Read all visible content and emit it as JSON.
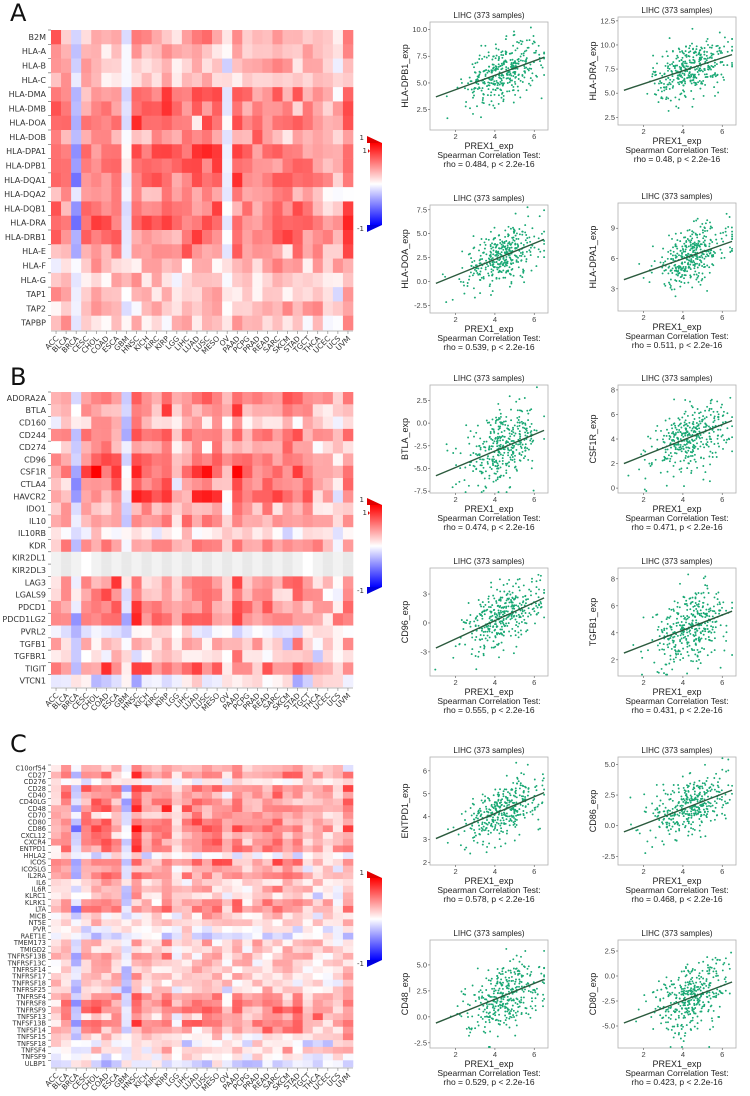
{
  "figure": {
    "panels": [
      "A",
      "B",
      "C"
    ]
  },
  "chart_data": [
    {
      "type": "heatmap",
      "panel": "A",
      "title": "",
      "xlabel": "",
      "ylabel": "",
      "color_scale": {
        "min": -1,
        "max": 1,
        "low_color": "#0000ff",
        "mid_color": "#ffffff",
        "high_color": "#ff0000",
        "labels": [
          "1",
          "1",
          "-1"
        ]
      },
      "columns": [
        "ACC",
        "BLCA",
        "BRCA",
        "CESC",
        "CHOL",
        "COAD",
        "ESCA",
        "GBM",
        "HNSC",
        "KICH",
        "KIRC",
        "KIRP",
        "LGG",
        "LIHC",
        "LUAD",
        "LUSC",
        "MESO",
        "OV",
        "PAAD",
        "PCPG",
        "PRAD",
        "READ",
        "SARC",
        "SKCM",
        "STAD",
        "TGCT",
        "THCA",
        "UCEC",
        "UCS",
        "UVM"
      ],
      "rows": [
        "B2M",
        "HLA-A",
        "HLA-B",
        "HLA-C",
        "HLA-DMA",
        "HLA-DMB",
        "HLA-DOA",
        "HLA-DOB",
        "HLA-DPA1",
        "HLA-DPB1",
        "HLA-DQA1",
        "HLA-DQA2",
        "HLA-DQB1",
        "HLA-DRA",
        "HLA-DRB1",
        "HLA-E",
        "HLA-F",
        "HLA-G",
        "TAP1",
        "TAP2",
        "TAPBP"
      ],
      "row_level": [
        0.35,
        0.3,
        0.3,
        0.28,
        0.55,
        0.55,
        0.6,
        0.4,
        0.62,
        0.62,
        0.58,
        0.45,
        0.55,
        0.62,
        0.55,
        0.42,
        0.28,
        0.22,
        0.3,
        0.3,
        0.25
      ],
      "col_level": [
        0.9,
        0.8,
        -0.6,
        0.8,
        0.9,
        0.9,
        0.9,
        -0.1,
        1.0,
        0.9,
        1.0,
        1.1,
        0.8,
        0.9,
        1.0,
        1.1,
        1.1,
        -0.1,
        1.1,
        0.8,
        0.9,
        0.9,
        1.0,
        0.8,
        0.9,
        0.7,
        0.7,
        0.5,
        0.4,
        1.2
      ]
    },
    {
      "type": "heatmap",
      "panel": "B",
      "title": "",
      "xlabel": "",
      "ylabel": "",
      "color_scale": {
        "min": -1,
        "max": 1,
        "low_color": "#0000ff",
        "mid_color": "#ffffff",
        "high_color": "#ff0000",
        "labels": [
          "1",
          "1",
          "-1"
        ]
      },
      "columns": [
        "ACC",
        "BLCA",
        "BRCA",
        "CESC",
        "CHOL",
        "COAD",
        "ESCA",
        "GBM",
        "HNSC",
        "KICH",
        "KIRC",
        "KIRP",
        "LGG",
        "LIHC",
        "LUAD",
        "LUSC",
        "MESO",
        "OV",
        "PAAD",
        "PCPG",
        "PRAD",
        "READ",
        "SARC",
        "SKCM",
        "STAD",
        "TGCT",
        "THCA",
        "UCEC",
        "UCS",
        "UVM"
      ],
      "rows": [
        "ADORA2A",
        "BTLA",
        "CD160",
        "CD244",
        "CD274",
        "CD96",
        "CSF1R",
        "CTLA4",
        "HAVCR2",
        "IDO1",
        "IL10",
        "IL10RB",
        "KDR",
        "KIR2DL1",
        "KIR2DL3",
        "LAG3",
        "LGALS9",
        "PDCD1",
        "PDCD1LG2",
        "PVRL2",
        "TGFB1",
        "TGFBR1",
        "TIGIT",
        "VTCN1"
      ],
      "row_level": [
        0.55,
        0.5,
        0.2,
        0.5,
        0.35,
        0.55,
        0.65,
        0.5,
        0.58,
        0.35,
        0.45,
        0.05,
        0.45,
        0.0,
        0.0,
        0.4,
        0.45,
        0.5,
        0.55,
        0.0,
        0.3,
        0.15,
        0.6,
        -0.1
      ],
      "col_level": [
        0.7,
        0.8,
        -0.4,
        0.9,
        1.0,
        1.0,
        1.0,
        -0.2,
        1.2,
        0.9,
        0.8,
        1.1,
        0.4,
        0.8,
        1.0,
        1.1,
        1.0,
        0.5,
        1.2,
        0.8,
        0.7,
        0.8,
        0.9,
        0.8,
        0.9,
        0.8,
        0.6,
        0.5,
        0.3,
        0.9
      ]
    },
    {
      "type": "heatmap",
      "panel": "C",
      "title": "",
      "xlabel": "",
      "ylabel": "",
      "color_scale": {
        "min": -1,
        "max": 1,
        "low_color": "#0000ff",
        "mid_color": "#ffffff",
        "high_color": "#ff0000",
        "labels": [
          "1",
          "-1"
        ]
      },
      "columns": [
        "ACC",
        "BLCA",
        "BRCA",
        "CESC",
        "CHOL",
        "COAD",
        "ESCA",
        "GBM",
        "HNSC",
        "KICH",
        "KIRC",
        "KIRP",
        "LGG",
        "LIHC",
        "LUAD",
        "LUSC",
        "MESO",
        "OV",
        "PAAD",
        "PCPG",
        "PRAD",
        "READ",
        "SARC",
        "SKCM",
        "STAD",
        "TGCT",
        "THCA",
        "UCEC",
        "UCS",
        "UVM"
      ],
      "rows": [
        "C10orf54",
        "CD27",
        "CD276",
        "CD28",
        "CD40",
        "CD40LG",
        "CD48",
        "CD70",
        "CD80",
        "CD86",
        "CXCL12",
        "CXCR4",
        "ENTPD1",
        "HHLA2",
        "ICOS",
        "ICOSLG",
        "IL2RA",
        "IL6",
        "IL6R",
        "KLRC1",
        "KLRK1",
        "LTA",
        "MICB",
        "NT5E",
        "PVR",
        "RAET1E",
        "TMEM173",
        "TMIGD2",
        "TNFRSF13B",
        "TNFRSF13C",
        "TNFRSF14",
        "TNFRSF17",
        "TNFRSF18",
        "TNFRSF25",
        "TNFRSF4",
        "TNFRSF8",
        "TNFRSF9",
        "TNFSF13",
        "TNFSF13B",
        "TNFSF14",
        "TNFSF15",
        "TNFSF18",
        "TNFSF4",
        "TNFSF9",
        "ULBP1"
      ],
      "row_level": [
        0.3,
        0.5,
        0.05,
        0.55,
        0.45,
        0.5,
        0.55,
        0.3,
        0.5,
        0.6,
        0.45,
        0.55,
        0.5,
        0.05,
        0.5,
        0.35,
        0.5,
        0.25,
        0.3,
        0.15,
        0.45,
        0.45,
        0.2,
        0.2,
        0.0,
        -0.1,
        0.3,
        0.2,
        0.35,
        0.25,
        0.2,
        0.3,
        0.25,
        0.15,
        0.45,
        0.55,
        0.55,
        0.35,
        0.6,
        0.45,
        0.2,
        0.1,
        0.2,
        0.0,
        -0.15
      ],
      "col_level": [
        0.5,
        0.9,
        -0.5,
        0.9,
        1.0,
        1.0,
        0.9,
        -0.3,
        1.2,
        0.7,
        0.8,
        1.1,
        0.4,
        0.7,
        0.9,
        1.0,
        1.0,
        0.5,
        1.0,
        0.6,
        0.7,
        0.8,
        0.9,
        0.9,
        0.9,
        0.5,
        0.7,
        0.5,
        0.4,
        0.9
      ]
    },
    {
      "type": "scatter",
      "panel": "A",
      "title": "LIHC (373 samples)",
      "xlabel": "PREX1_exp",
      "ylabel": "HLA-DPB1_exp",
      "caption": [
        "Spearman Correlation Test:",
        "rho = 0.484, p < 2.2e-16"
      ],
      "xticks": [
        2,
        4,
        6
      ],
      "yticks": [
        2.5,
        5.0,
        7.5,
        10.0
      ],
      "ytick_labels": [
        "2.5",
        "5.0",
        "7.5",
        "10.0"
      ],
      "xlim": [
        0.7,
        6.7
      ],
      "ylim": [
        0.6,
        10.7
      ],
      "fit": [
        [
          1.0,
          3.7
        ],
        [
          6.5,
          7.4
        ]
      ],
      "rho": 0.484,
      "n": 373,
      "center_x": 4.4,
      "center_y": 6.0,
      "spread_y": 1.3
    },
    {
      "type": "scatter",
      "panel": "A",
      "title": "LIHC (373 samples)",
      "xlabel": "PREX1_exp",
      "ylabel": "HLA-DRA_exp",
      "caption": [
        "Spearman Correlation Test:",
        "rho = 0.48, p < 2.2e-16"
      ],
      "xticks": [
        2,
        4,
        6
      ],
      "yticks": [
        2.5,
        5.0,
        7.5,
        10.0,
        12.5
      ],
      "ytick_labels": [
        "2.5",
        "5.0",
        "7.5",
        "10.0",
        "12.5"
      ],
      "xlim": [
        0.7,
        6.7
      ],
      "ylim": [
        1.7,
        12.9
      ],
      "fit": [
        [
          1.0,
          5.3
        ],
        [
          6.5,
          9.0
        ]
      ],
      "rho": 0.48,
      "n": 373,
      "center_x": 4.4,
      "center_y": 7.6,
      "spread_y": 1.4
    },
    {
      "type": "scatter",
      "panel": "A",
      "title": "LIHC (373 samples)",
      "xlabel": "PREX1_exp",
      "ylabel": "HLA-DOA_exp",
      "caption": [
        "Spearman Correlation Test:",
        "rho = 0.539, p < 2.2e-16"
      ],
      "xticks": [
        2,
        4,
        6
      ],
      "yticks": [
        -2.5,
        0.0,
        2.5,
        5.0,
        7.5
      ],
      "ytick_labels": [
        "-2.5",
        "0.0",
        "2.5",
        "5.0",
        "7.5"
      ],
      "xlim": [
        0.7,
        6.7
      ],
      "ylim": [
        -3.3,
        8.0
      ],
      "fit": [
        [
          1.0,
          -0.2
        ],
        [
          6.5,
          4.4
        ]
      ],
      "rho": 0.539,
      "n": 373,
      "center_x": 4.4,
      "center_y": 2.6,
      "spread_y": 1.4
    },
    {
      "type": "scatter",
      "panel": "A",
      "title": "LIHC (373 samples)",
      "xlabel": "PREX1_exp",
      "ylabel": "HLA-DPA1_exp",
      "caption": [
        "Spearman Correlation Test:",
        "rho = 0.511, p < 2.2e-16"
      ],
      "xticks": [
        2,
        4,
        6
      ],
      "yticks": [
        3,
        6,
        9
      ],
      "ytick_labels": [
        "3",
        "6",
        "9"
      ],
      "xlim": [
        0.7,
        6.7
      ],
      "ylim": [
        0.8,
        11.5
      ],
      "fit": [
        [
          1.0,
          3.9
        ],
        [
          6.5,
          7.7
        ]
      ],
      "rho": 0.511,
      "n": 373,
      "center_x": 4.4,
      "center_y": 6.3,
      "spread_y": 1.3
    },
    {
      "type": "scatter",
      "panel": "B",
      "title": "LIHC (373 samples)",
      "xlabel": "PREX1_exp",
      "ylabel": "BTLA_exp",
      "caption": [
        "Spearman Correlation Test:",
        "rho = 0.474, p < 2.2e-16"
      ],
      "xticks": [
        2,
        4,
        6
      ],
      "yticks": [
        -7.5,
        -5.0,
        -2.5,
        0.0,
        2.5
      ],
      "ytick_labels": [
        "-7.5",
        "-5.0",
        "-2.5",
        "0.0",
        "2.5"
      ],
      "xlim": [
        0.7,
        6.7
      ],
      "ylim": [
        -7.7,
        4.2
      ],
      "fit": [
        [
          1.0,
          -5.8
        ],
        [
          6.5,
          -0.8
        ]
      ],
      "rho": 0.474,
      "n": 373,
      "center_x": 4.4,
      "center_y": -2.7,
      "spread_y": 1.8
    },
    {
      "type": "scatter",
      "panel": "B",
      "title": "LIHC (373 samples)",
      "xlabel": "PREX1_exp",
      "ylabel": "CSF1R_exp",
      "caption": [
        "Spearman Correlation Test:",
        "rho = 0.471, p < 2.2e-16"
      ],
      "xticks": [
        2,
        4,
        6
      ],
      "yticks": [
        0,
        2,
        4,
        6,
        8
      ],
      "ytick_labels": [
        "0",
        "2",
        "4",
        "6",
        "8"
      ],
      "xlim": [
        0.7,
        6.7
      ],
      "ylim": [
        -0.4,
        8.4
      ],
      "fit": [
        [
          1.0,
          2.0
        ],
        [
          6.5,
          5.5
        ]
      ],
      "rho": 0.471,
      "n": 373,
      "center_x": 4.4,
      "center_y": 4.2,
      "spread_y": 1.2
    },
    {
      "type": "scatter",
      "panel": "B",
      "title": "LIHC (373 samples)",
      "xlabel": "PREX1_exp",
      "ylabel": "CD96_exp",
      "caption": [
        "Spearman Correlation Test:",
        "rho = 0.555, p < 2.2e-16"
      ],
      "xticks": [
        2,
        4,
        6
      ],
      "yticks": [
        -3,
        0,
        3
      ],
      "ytick_labels": [
        "-3",
        "0",
        "3"
      ],
      "xlim": [
        0.7,
        6.7
      ],
      "ylim": [
        -5.5,
        5.7
      ],
      "fit": [
        [
          1.0,
          -2.6
        ],
        [
          6.5,
          2.6
        ]
      ],
      "rho": 0.555,
      "n": 373,
      "center_x": 4.4,
      "center_y": 0.6,
      "spread_y": 1.5
    },
    {
      "type": "scatter",
      "panel": "B",
      "title": "LIHC (373 samples)",
      "xlabel": "PREX1_exp",
      "ylabel": "TGFB1_exp",
      "caption": [
        "Spearman Correlation Test:",
        "rho = 0.431, p < 2.2e-16"
      ],
      "xticks": [
        2,
        4,
        6
      ],
      "yticks": [
        2,
        4,
        6,
        8
      ],
      "ytick_labels": [
        "2",
        "4",
        "6",
        "8"
      ],
      "xlim": [
        0.7,
        6.7
      ],
      "ylim": [
        0.8,
        8.8
      ],
      "fit": [
        [
          1.0,
          2.5
        ],
        [
          6.5,
          5.6
        ]
      ],
      "rho": 0.431,
      "n": 373,
      "center_x": 4.4,
      "center_y": 4.4,
      "spread_y": 1.3
    },
    {
      "type": "scatter",
      "panel": "C",
      "title": "LIHC (373 samples)",
      "xlabel": "PREX1_exp",
      "ylabel": "ENTPD1_exp",
      "caption": [
        "Spearman Correlation Test:",
        "rho = 0.578, p < 2.2e-16"
      ],
      "xticks": [
        2,
        4,
        6
      ],
      "yticks": [
        2,
        3,
        4,
        5,
        6
      ],
      "ytick_labels": [
        "2",
        "3",
        "4",
        "5",
        "6"
      ],
      "xlim": [
        0.7,
        6.7
      ],
      "ylim": [
        1.9,
        6.6
      ],
      "fit": [
        [
          1.0,
          3.05
        ],
        [
          6.5,
          5.05
        ]
      ],
      "rho": 0.578,
      "n": 373,
      "center_x": 4.4,
      "center_y": 4.3,
      "spread_y": 0.55
    },
    {
      "type": "scatter",
      "panel": "C",
      "title": "LIHC (373 samples)",
      "xlabel": "PREX1_exp",
      "ylabel": "CD86_exp",
      "caption": [
        "Spearman Correlation Test:",
        "rho = 0.468, p < 2.2e-16"
      ],
      "xticks": [
        2,
        4,
        6
      ],
      "yticks": [
        -2.5,
        0.0,
        2.5,
        5.0
      ],
      "ytick_labels": [
        "-2.5",
        "0.0",
        "2.5",
        "5.0"
      ],
      "xlim": [
        0.7,
        6.7
      ],
      "ylim": [
        -3.2,
        5.6
      ],
      "fit": [
        [
          1.0,
          -0.5
        ],
        [
          6.5,
          2.9
        ]
      ],
      "rho": 0.468,
      "n": 373,
      "center_x": 4.4,
      "center_y": 1.6,
      "spread_y": 1.2
    },
    {
      "type": "scatter",
      "panel": "C",
      "title": "LIHC (373 samples)",
      "xlabel": "PREX1_exp",
      "ylabel": "CD48_exp",
      "caption": [
        "Spearman Correlation Test:",
        "rho = 0.529, p < 2.2e-16"
      ],
      "xticks": [
        2,
        4,
        6
      ],
      "yticks": [
        -2.5,
        0.0,
        2.5,
        5.0
      ],
      "ytick_labels": [
        "-2.5",
        "0.0",
        "2.5",
        "5.0"
      ],
      "xlim": [
        0.7,
        6.7
      ],
      "ylim": [
        -3.0,
        7.4
      ],
      "fit": [
        [
          1.0,
          -0.6
        ],
        [
          6.5,
          3.6
        ]
      ],
      "rho": 0.529,
      "n": 373,
      "center_x": 4.4,
      "center_y": 2.1,
      "spread_y": 1.5
    },
    {
      "type": "scatter",
      "panel": "C",
      "title": "LIHC (373 samples)",
      "xlabel": "PREX1_exp",
      "ylabel": "CD80_exp",
      "caption": [
        "Spearman Correlation Test:",
        "rho = 0.423, p < 2.2e-16"
      ],
      "xticks": [
        2,
        4,
        6
      ],
      "yticks": [
        -5.0,
        -2.5,
        0.0,
        2.5
      ],
      "ytick_labels": [
        "-5.0",
        "-2.5",
        "0.0",
        "2.5"
      ],
      "xlim": [
        0.7,
        6.7
      ],
      "ylim": [
        -7.2,
        3.6
      ],
      "fit": [
        [
          1.0,
          -4.7
        ],
        [
          6.5,
          -0.6
        ]
      ],
      "rho": 0.423,
      "n": 373,
      "center_x": 4.4,
      "center_y": -2.2,
      "spread_y": 1.7
    }
  ]
}
